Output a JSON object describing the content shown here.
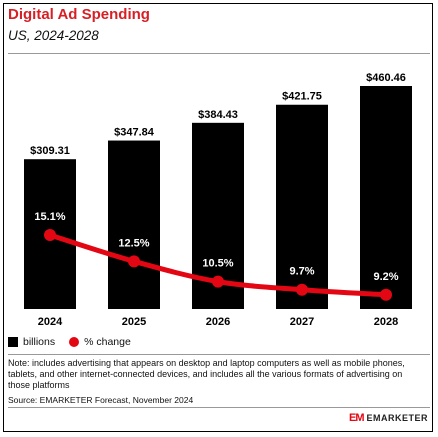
{
  "header": {
    "title": "Digital Ad Spending",
    "subtitle": "US, 2024-2028"
  },
  "legend": {
    "bars_label": "billions",
    "line_label": "% change"
  },
  "footer": {
    "note": "Note: includes advertising that appears on desktop and laptop computers as well as mobile phones, tablets, and other internet-connected devices, and includes all the various formats of advertising on those platforms",
    "source": "Source: EMARKETER Forecast, November 2024",
    "brand_mark": "EM",
    "brand_name": "EMARKETER"
  },
  "colors": {
    "title": "#d71f26",
    "bars": "#000000",
    "line": "#e30613"
  },
  "chart_data": {
    "type": "bar",
    "categories": [
      "2024",
      "2025",
      "2026",
      "2027",
      "2028"
    ],
    "series": [
      {
        "name": "billions",
        "type": "bar",
        "values": [
          309.31,
          347.84,
          384.43,
          421.75,
          460.46
        ],
        "labels": [
          "$309.31",
          "$347.84",
          "$384.43",
          "$421.75",
          "$460.46"
        ]
      },
      {
        "name": "% change",
        "type": "line",
        "values": [
          15.1,
          12.5,
          10.5,
          9.7,
          9.2
        ],
        "labels": [
          "15.1%",
          "12.5%",
          "10.5%",
          "9.7%",
          "9.2%"
        ]
      }
    ],
    "title": "Digital Ad Spending",
    "subtitle": "US, 2024-2028",
    "ylim": [
      0,
      460.46
    ],
    "line_ylim": [
      0,
      15.1
    ],
    "grid": false,
    "legend_position": "bottom-left"
  }
}
